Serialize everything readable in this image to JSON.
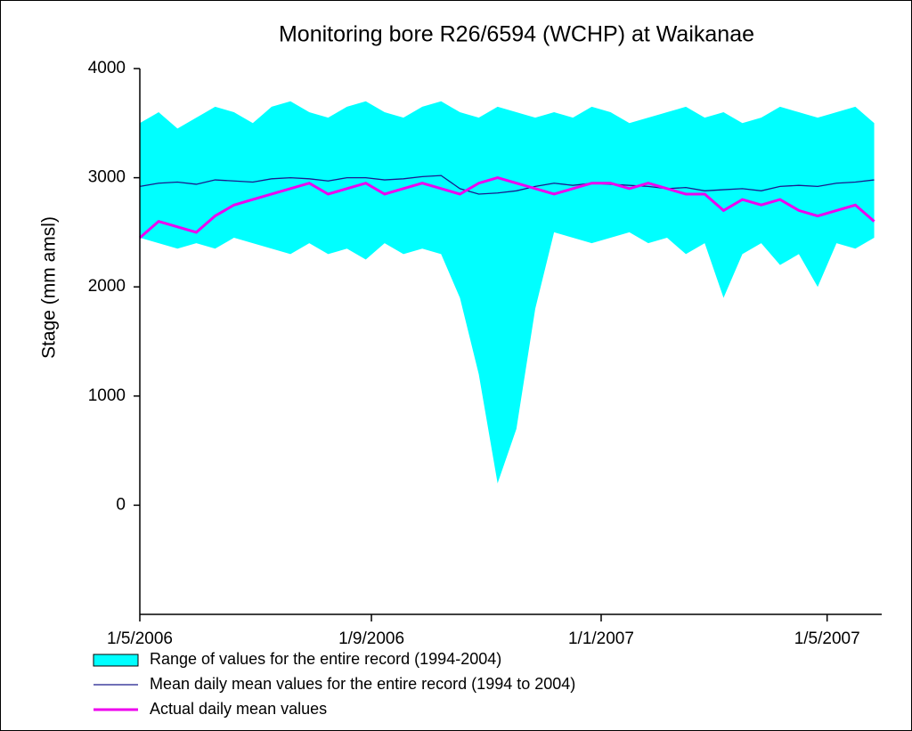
{
  "chart_data": {
    "type": "line",
    "title": "Monitoring bore R26/6594 (WCHP) at Waikanae",
    "y_label": "Stage (mm amsl)",
    "x": [
      "1/5/2006",
      "11/5/2006",
      "21/5/2006",
      "31/5/2006",
      "10/6/2006",
      "20/6/2006",
      "30/6/2006",
      "10/7/2006",
      "20/7/2006",
      "30/7/2006",
      "9/8/2006",
      "19/8/2006",
      "29/8/2006",
      "8/9/2006",
      "18/9/2006",
      "28/9/2006",
      "8/10/2006",
      "18/10/2006",
      "28/10/2006",
      "7/11/2006",
      "17/11/2006",
      "27/11/2006",
      "7/12/2006",
      "17/12/2006",
      "27/12/2006",
      "6/1/2007",
      "16/1/2007",
      "26/1/2007",
      "5/2/2007",
      "15/2/2007",
      "25/2/2007",
      "7/3/2007",
      "17/3/2007",
      "27/3/2007",
      "6/4/2007",
      "16/4/2007",
      "26/4/2007",
      "6/5/2007",
      "16/5/2007",
      "26/5/2007"
    ],
    "series": [
      {
        "name": "Range of values for the entire record (1994-2004)",
        "color": "#00ffff",
        "high": [
          3500,
          3600,
          3450,
          3550,
          3650,
          3600,
          3500,
          3650,
          3700,
          3600,
          3550,
          3650,
          3700,
          3600,
          3550,
          3650,
          3700,
          3600,
          3550,
          3650,
          3600,
          3550,
          3600,
          3550,
          3650,
          3600,
          3500,
          3550,
          3600,
          3650,
          3550,
          3600,
          3500,
          3550,
          3650,
          3600,
          3550,
          3600,
          3650,
          3500
        ],
        "low": [
          2450,
          2400,
          2350,
          2400,
          2350,
          2450,
          2400,
          2350,
          2300,
          2400,
          2300,
          2350,
          2250,
          2400,
          2300,
          2350,
          2300,
          1900,
          1200,
          200,
          700,
          1800,
          2500,
          2450,
          2400,
          2450,
          2500,
          2400,
          2450,
          2300,
          2400,
          1900,
          2300,
          2400,
          2200,
          2300,
          2000,
          2400,
          2350,
          2450
        ]
      },
      {
        "name": "Mean daily mean values for the entire record (1994 to 2004)",
        "color": "#1a1a8c",
        "values": [
          2920,
          2950,
          2960,
          2940,
          2980,
          2970,
          2960,
          2990,
          3000,
          2990,
          2970,
          3000,
          3000,
          2980,
          2990,
          3010,
          3020,
          2900,
          2850,
          2860,
          2880,
          2920,
          2950,
          2930,
          2950,
          2940,
          2930,
          2920,
          2900,
          2910,
          2880,
          2890,
          2900,
          2880,
          2920,
          2930,
          2920,
          2950,
          2960,
          2980
        ]
      },
      {
        "name": "Actual daily mean values",
        "color": "#ee00ee",
        "values": [
          2450,
          2600,
          2550,
          2500,
          2650,
          2750,
          2800,
          2850,
          2900,
          2950,
          2850,
          2900,
          2950,
          2850,
          2900,
          2950,
          2900,
          2850,
          2950,
          3000,
          2950,
          2900,
          2850,
          2900,
          2950,
          2950,
          2900,
          2950,
          2900,
          2850,
          2850,
          2700,
          2800,
          2750,
          2800,
          2700,
          2650,
          2700,
          2750,
          2600
        ]
      }
    ],
    "xlim": [
      "1/5/2006",
      "30/5/2007"
    ],
    "xticks": [
      "1/5/2006",
      "1/9/2006",
      "1/1/2007",
      "1/5/2007"
    ],
    "ylim": [
      -1000,
      4000
    ],
    "yticks": [
      0,
      1000,
      2000,
      3000,
      4000
    ]
  }
}
